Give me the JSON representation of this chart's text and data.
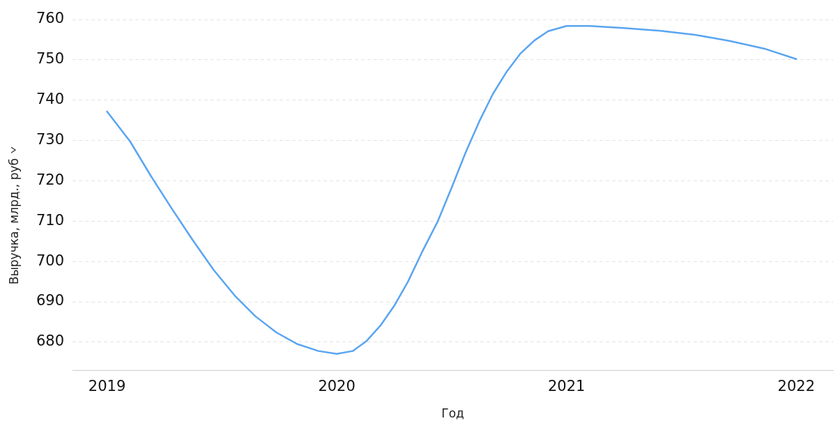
{
  "chart_data": {
    "type": "line",
    "xlabel": "Год",
    "ylabel": "Выручка, млрд., руб",
    "x": [
      2019,
      2019.1,
      2019.191,
      2019.282,
      2019.373,
      2019.464,
      2019.555,
      2019.646,
      2019.737,
      2019.829,
      2019.92,
      2020,
      2020.07,
      2020.13,
      2020.19,
      2020.25,
      2020.31,
      2020.37,
      2020.44,
      2020.5,
      2020.56,
      2020.62,
      2020.68,
      2020.74,
      2020.8,
      2020.86,
      2020.92,
      2021,
      2021.1,
      2021.25,
      2021.41,
      2021.56,
      2021.71,
      2021.86,
      2022
    ],
    "series": [
      {
        "color": "#5aa5f0",
        "values": [
          737.2,
          729.8,
          721.2,
          713.1,
          705.3,
          697.9,
          691.6,
          686.4,
          682.4,
          679.5,
          677.8,
          677.1,
          677.8,
          680.3,
          684.1,
          689,
          695,
          702.2,
          710,
          718.3,
          726.9,
          734.7,
          741.6,
          747.1,
          751.6,
          754.8,
          757.1,
          758.4,
          758.4,
          757.9,
          757.2,
          756.2,
          754.7,
          752.8,
          750.2
        ]
      }
    ],
    "xlim": [
      2018.85,
      2022.16
    ],
    "xticks": [
      2019,
      2020,
      2021,
      2022
    ],
    "ylim": [
      673,
      760
    ],
    "yticks": [
      680,
      690,
      700,
      710,
      720,
      730,
      740,
      750,
      760
    ],
    "grid": "y",
    "legend": false,
    "marker": "none",
    "line_style": "solid"
  }
}
